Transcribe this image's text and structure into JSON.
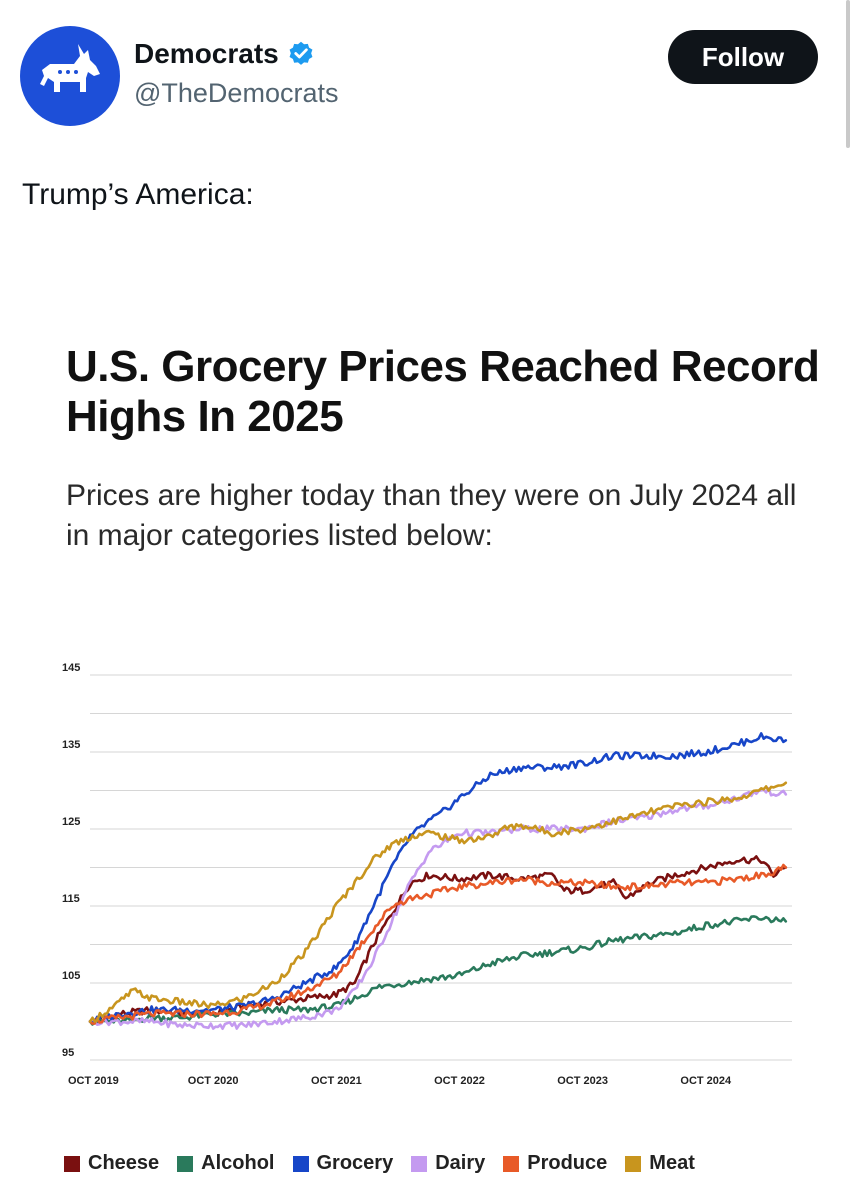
{
  "post": {
    "display_name": "Democrats",
    "handle": "@TheDemocrats",
    "follow_label": "Follow",
    "text": "Trump’s America:"
  },
  "colors": {
    "avatar_bg": "#1d4fd8",
    "verified": "#1d9bf0"
  },
  "chart_data": {
    "type": "line",
    "title": "U.S. Grocery Prices Reached Record Highs In 2025",
    "subtitle": "Prices are higher today than they were on July 2024 all in major categories listed below:",
    "xlabel": "",
    "ylabel": "",
    "ylim": [
      95,
      145
    ],
    "xlim": [
      2019.75,
      2025.45
    ],
    "y_ticks": [
      95,
      105,
      115,
      125,
      135,
      145
    ],
    "x_ticks": [
      {
        "label": "OCT 2019",
        "value": 2019.75
      },
      {
        "label": "OCT 2020",
        "value": 2020.75
      },
      {
        "label": "OCT 2021",
        "value": 2021.75
      },
      {
        "label": "OCT 2022",
        "value": 2022.75
      },
      {
        "label": "OCT 2023",
        "value": 2023.75
      },
      {
        "label": "OCT 2024",
        "value": 2024.75
      }
    ],
    "grid": true,
    "legend_position": "bottom",
    "series": [
      {
        "name": "Cheese",
        "color": "#7a1010",
        "points": [
          [
            2019.75,
            100
          ],
          [
            2020.0,
            101
          ],
          [
            2020.25,
            101.5
          ],
          [
            2020.5,
            101
          ],
          [
            2020.75,
            101
          ],
          [
            2021.0,
            102
          ],
          [
            2021.25,
            102.5
          ],
          [
            2021.5,
            103
          ],
          [
            2021.75,
            103.5
          ],
          [
            2021.9,
            105
          ],
          [
            2022.05,
            110
          ],
          [
            2022.2,
            114
          ],
          [
            2022.35,
            118
          ],
          [
            2022.5,
            119
          ],
          [
            2022.75,
            118.5
          ],
          [
            2023.0,
            119
          ],
          [
            2023.25,
            118.5
          ],
          [
            2023.5,
            119
          ],
          [
            2023.6,
            117
          ],
          [
            2023.75,
            117
          ],
          [
            2024.0,
            118
          ],
          [
            2024.1,
            116
          ],
          [
            2024.3,
            118
          ],
          [
            2024.5,
            119
          ],
          [
            2024.75,
            120
          ],
          [
            2025.0,
            121
          ],
          [
            2025.2,
            121
          ],
          [
            2025.3,
            119
          ],
          [
            2025.4,
            120
          ]
        ]
      },
      {
        "name": "Alcohol",
        "color": "#2a7a5c",
        "points": [
          [
            2019.75,
            100
          ],
          [
            2020.0,
            100
          ],
          [
            2020.25,
            100.5
          ],
          [
            2020.5,
            100.5
          ],
          [
            2020.75,
            101
          ],
          [
            2021.0,
            101
          ],
          [
            2021.25,
            101.5
          ],
          [
            2021.5,
            101.5
          ],
          [
            2021.75,
            102
          ],
          [
            2021.9,
            103
          ],
          [
            2022.1,
            104.5
          ],
          [
            2022.3,
            105
          ],
          [
            2022.5,
            105.5
          ],
          [
            2022.75,
            106
          ],
          [
            2023.0,
            107.5
          ],
          [
            2023.25,
            108.5
          ],
          [
            2023.5,
            109
          ],
          [
            2023.75,
            109.5
          ],
          [
            2024.0,
            110.5
          ],
          [
            2024.25,
            111
          ],
          [
            2024.5,
            111.5
          ],
          [
            2024.75,
            112.5
          ],
          [
            2025.0,
            113
          ],
          [
            2025.2,
            113.5
          ],
          [
            2025.4,
            113
          ]
        ]
      },
      {
        "name": "Grocery",
        "color": "#1746c8",
        "points": [
          [
            2019.75,
            100
          ],
          [
            2020.0,
            101
          ],
          [
            2020.25,
            101.5
          ],
          [
            2020.5,
            101.5
          ],
          [
            2020.75,
            101.5
          ],
          [
            2021.0,
            102
          ],
          [
            2021.25,
            103
          ],
          [
            2021.5,
            105
          ],
          [
            2021.75,
            107
          ],
          [
            2021.9,
            110
          ],
          [
            2022.05,
            115
          ],
          [
            2022.2,
            120
          ],
          [
            2022.35,
            124
          ],
          [
            2022.5,
            126
          ],
          [
            2022.6,
            127
          ],
          [
            2022.75,
            129
          ],
          [
            2023.0,
            132
          ],
          [
            2023.25,
            133
          ],
          [
            2023.5,
            133
          ],
          [
            2023.75,
            133.5
          ],
          [
            2024.0,
            134.5
          ],
          [
            2024.25,
            134.5
          ],
          [
            2024.5,
            134.5
          ],
          [
            2024.75,
            135
          ],
          [
            2025.0,
            136
          ],
          [
            2025.2,
            137
          ],
          [
            2025.4,
            136.5
          ]
        ]
      },
      {
        "name": "Dairy",
        "color": "#c49af0",
        "points": [
          [
            2019.75,
            100
          ],
          [
            2020.0,
            100
          ],
          [
            2020.25,
            100
          ],
          [
            2020.5,
            99.5
          ],
          [
            2020.75,
            99.5
          ],
          [
            2021.0,
            99.5
          ],
          [
            2021.25,
            100
          ],
          [
            2021.5,
            100.5
          ],
          [
            2021.75,
            101.5
          ],
          [
            2021.9,
            104
          ],
          [
            2022.05,
            108
          ],
          [
            2022.2,
            113
          ],
          [
            2022.35,
            118
          ],
          [
            2022.5,
            122
          ],
          [
            2022.75,
            124.5
          ],
          [
            2023.0,
            124.5
          ],
          [
            2023.25,
            125
          ],
          [
            2023.5,
            125
          ],
          [
            2023.75,
            125
          ],
          [
            2024.0,
            126
          ],
          [
            2024.25,
            126.5
          ],
          [
            2024.5,
            127.5
          ],
          [
            2024.75,
            128
          ],
          [
            2025.0,
            129
          ],
          [
            2025.2,
            130
          ],
          [
            2025.4,
            129.5
          ]
        ]
      },
      {
        "name": "Produce",
        "color": "#e85a28",
        "points": [
          [
            2019.75,
            100
          ],
          [
            2020.0,
            100.5
          ],
          [
            2020.25,
            101
          ],
          [
            2020.5,
            101
          ],
          [
            2020.75,
            101
          ],
          [
            2021.0,
            101.5
          ],
          [
            2021.25,
            102.5
          ],
          [
            2021.5,
            104
          ],
          [
            2021.75,
            106
          ],
          [
            2021.9,
            109
          ],
          [
            2022.05,
            112
          ],
          [
            2022.2,
            115
          ],
          [
            2022.35,
            116
          ],
          [
            2022.5,
            116.5
          ],
          [
            2022.75,
            117.5
          ],
          [
            2023.0,
            118
          ],
          [
            2023.25,
            118.5
          ],
          [
            2023.5,
            118
          ],
          [
            2023.75,
            118
          ],
          [
            2024.0,
            117.5
          ],
          [
            2024.25,
            117.5
          ],
          [
            2024.5,
            118
          ],
          [
            2024.75,
            118
          ],
          [
            2025.0,
            118.5
          ],
          [
            2025.2,
            119
          ],
          [
            2025.4,
            120
          ]
        ]
      },
      {
        "name": "Meat",
        "color": "#c8951e",
        "points": [
          [
            2019.75,
            100
          ],
          [
            2019.95,
            102
          ],
          [
            2020.1,
            104
          ],
          [
            2020.25,
            103
          ],
          [
            2020.5,
            102.5
          ],
          [
            2020.75,
            102
          ],
          [
            2021.0,
            103
          ],
          [
            2021.25,
            105
          ],
          [
            2021.5,
            109
          ],
          [
            2021.75,
            115
          ],
          [
            2021.9,
            118
          ],
          [
            2022.05,
            121
          ],
          [
            2022.2,
            123
          ],
          [
            2022.35,
            124
          ],
          [
            2022.5,
            124.5
          ],
          [
            2022.75,
            123.5
          ],
          [
            2023.0,
            124
          ],
          [
            2023.1,
            125
          ],
          [
            2023.25,
            125.5
          ],
          [
            2023.5,
            124.5
          ],
          [
            2023.75,
            125
          ],
          [
            2024.0,
            126
          ],
          [
            2024.25,
            127
          ],
          [
            2024.5,
            128
          ],
          [
            2024.75,
            128.5
          ],
          [
            2025.0,
            129
          ],
          [
            2025.2,
            130
          ],
          [
            2025.4,
            131
          ]
        ]
      }
    ]
  }
}
